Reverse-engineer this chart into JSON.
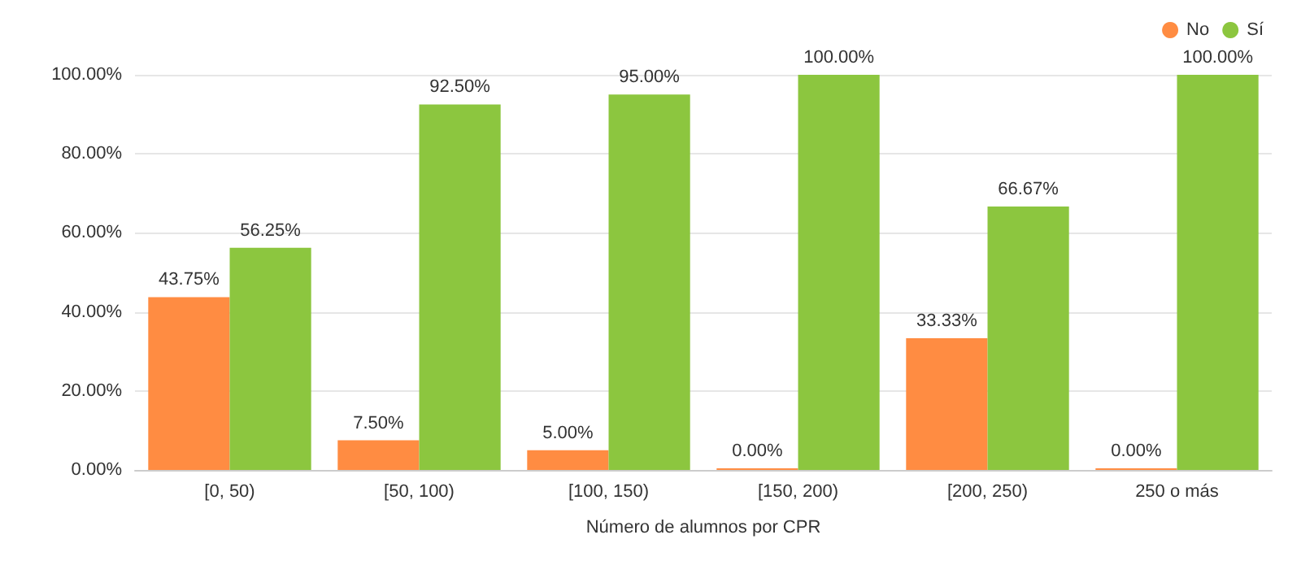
{
  "chart_data": {
    "type": "bar",
    "xlabel": "Número de alumnos por CPR",
    "categories": [
      "[0, 50)",
      "[50, 100)",
      "[100, 150)",
      "[150, 200)",
      "[200, 250)",
      "250 o más"
    ],
    "series": [
      {
        "name": "No",
        "color": "#ff8c42",
        "values": [
          43.75,
          7.5,
          5,
          0,
          33.33,
          0
        ],
        "value_labels": [
          "43.75%",
          "7.50%",
          "5.00%",
          "0.00%",
          "33.33%",
          "0.00%"
        ]
      },
      {
        "name": "Sí",
        "color": "#8cc63f",
        "values": [
          56.25,
          92.5,
          95,
          100,
          66.67,
          100
        ],
        "value_labels": [
          "56.25%",
          "92.50%",
          "95.00%",
          "100.00%",
          "66.67%",
          "100.00%"
        ]
      }
    ],
    "ylim": [
      0,
      100
    ],
    "yticks": [
      {
        "value": 0,
        "label": "0.00%"
      },
      {
        "value": 20,
        "label": "20.00%"
      },
      {
        "value": 40,
        "label": "40.00%"
      },
      {
        "value": 60,
        "label": "60.00%"
      },
      {
        "value": 80,
        "label": "80.00%"
      },
      {
        "value": 100,
        "label": "100.00%"
      }
    ],
    "grid": "y",
    "legend": "top right"
  }
}
